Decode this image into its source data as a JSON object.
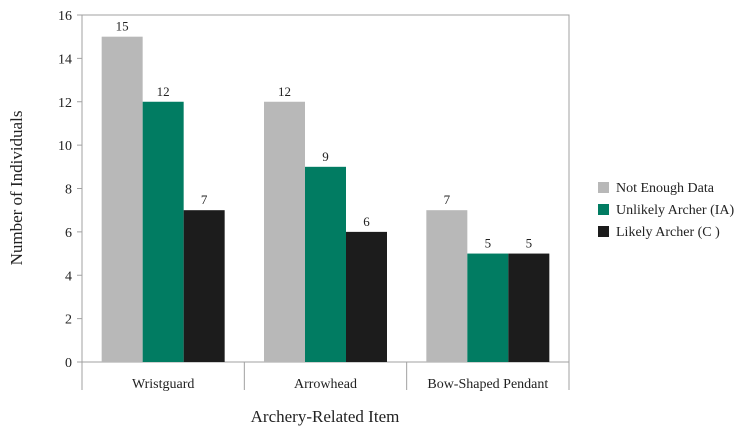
{
  "chart_data": {
    "type": "bar",
    "xlabel": "Archery-Related Item",
    "ylabel": "Number of Individuals",
    "ylim": [
      0,
      16
    ],
    "yticks": [
      0,
      2,
      4,
      6,
      8,
      10,
      12,
      14,
      16
    ],
    "categories": [
      "Wristguard",
      "Arrowhead",
      "Bow-Shaped Pendant"
    ],
    "series": [
      {
        "name": "Not Enough Data",
        "color": "#b8b8b8",
        "values": [
          15,
          12,
          7
        ]
      },
      {
        "name": "Unlikely Archer (IA)",
        "color": "#017c62",
        "values": [
          12,
          9,
          5
        ]
      },
      {
        "name": "Likely Archer (C )",
        "color": "#1c1c1c",
        "values": [
          7,
          6,
          5
        ]
      }
    ],
    "legend_position": "right",
    "grid": false,
    "data_labels": true
  }
}
